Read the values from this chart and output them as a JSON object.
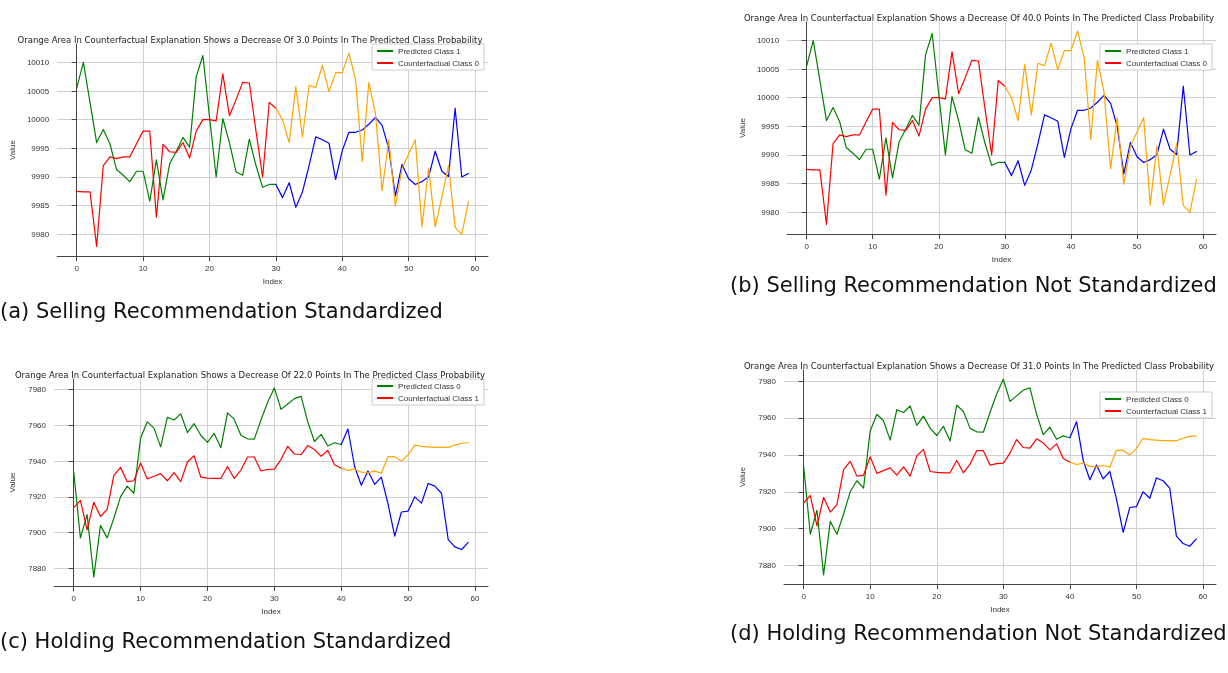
{
  "chart_data": [
    {
      "type": "line",
      "title": "Orange Area In Counterfactual Explanation Shows a Decrease Of 3.0 Points In The Predicted Class Probability",
      "xlabel": "Index",
      "ylabel": "Value",
      "xlim": [
        -2.95,
        61.95
      ],
      "xticks": [
        0,
        10,
        20,
        30,
        40,
        50,
        60
      ],
      "ylim": [
        9976.2,
        10013.2
      ],
      "yticks": [
        9980,
        9985,
        9990,
        9995,
        10000,
        10005,
        10010
      ],
      "grid": true,
      "legend": "top right",
      "annotations": [
        "(a) Selling Recommendation Standardized"
      ],
      "series": [
        {
          "name": "Predicted Class 1",
          "color": "#008000",
          "x": [
            0,
            1,
            2,
            3,
            4,
            5,
            6,
            7,
            8,
            9,
            10,
            11,
            12,
            13,
            14,
            15,
            16,
            17,
            18,
            19,
            20,
            21,
            22,
            23,
            24,
            25,
            26,
            27,
            28,
            29,
            30
          ],
          "values": [
            10005.5,
            10010,
            10003,
            9996,
            9998.3,
            9995.8,
            9991.3,
            9990.3,
            9989.2,
            9991,
            9991,
            9985.8,
            9993,
            9986,
            9992.3,
            9994.5,
            9996.9,
            9995.2,
            10007.5,
            10011.2,
            10000.5,
            9990,
            10000.2,
            9996,
            9990.9,
            9990.3,
            9996.6,
            9992,
            9988.2,
            9988.7,
            9988.7
          ]
        },
        {
          "name": "Counterfactual Class 0",
          "color": "#ff0000",
          "x": [
            0,
            1,
            2,
            3,
            4,
            5,
            6,
            7,
            8,
            9,
            10,
            11,
            12,
            13,
            14,
            15,
            16,
            17,
            18,
            19,
            20,
            21,
            22,
            23,
            24,
            25,
            26,
            27,
            28,
            29,
            30
          ],
          "values": [
            9987.5,
            9987.4,
            9987.4,
            9977.9,
            9992,
            9993.5,
            9993.2,
            9993.5,
            9993.5,
            9995.8,
            9998,
            9998,
            9983,
            9995.7,
            9994.4,
            9994.3,
            9996,
            9993.3,
            9998,
            10000,
            10000,
            9999.8,
            10008,
            10000.7,
            10003.5,
            10006.5,
            10006.4,
            9998,
            9990,
            10003,
            10002
          ]
        },
        {
          "color": "#0000ff",
          "x": [
            30,
            31,
            32,
            33,
            34,
            35,
            36,
            37,
            38,
            39,
            40,
            41,
            42,
            43,
            44,
            45,
            46,
            47,
            48,
            49,
            50,
            51,
            52,
            53,
            54,
            55,
            56,
            57,
            58,
            59
          ],
          "values": [
            9988.7,
            9986.4,
            9989,
            9984.7,
            9987.4,
            9992,
            9997,
            9996.5,
            9995.9,
            9989.6,
            9994.6,
            9997.8,
            9997.8,
            9998.2,
            9999.2,
            10000.4,
            9999,
            9995,
            9986.7,
            9992.2,
            9989.7,
            9988.7,
            9989.2,
            9990,
            9994.5,
            9991,
            9990.1,
            10002,
            9990,
            9990.6
          ]
        },
        {
          "color": "#ffa500",
          "x": [
            30,
            31,
            32,
            33,
            34,
            35,
            36,
            37,
            38,
            39,
            40,
            41,
            42,
            43,
            44,
            45,
            46,
            47,
            48,
            49,
            50,
            51,
            52,
            53,
            54,
            55,
            56,
            57,
            58,
            59
          ],
          "values": [
            10002,
            10000,
            9996,
            10005.8,
            9997,
            10006,
            10005.6,
            10009.5,
            10004.9,
            10008.2,
            10008.2,
            10011.6,
            10007,
            9992.7,
            10006.5,
            10001,
            9987.6,
            9996.5,
            9984.9,
            9991.5,
            9994,
            9996.5,
            9981.3,
            9991.5,
            9981.3,
            9986.5,
            9992,
            9981.2,
            9980,
            9985.7
          ]
        }
      ]
    },
    {
      "type": "line",
      "title": "Orange Area In Counterfactual Explanation Shows a Decrease Of 40.0 Points In The Predicted Class Probability",
      "xlabel": "Index",
      "ylabel": "Value",
      "xlim": [
        -2.95,
        61.95
      ],
      "xticks": [
        0,
        10,
        20,
        30,
        40,
        50,
        60
      ],
      "ylim": [
        9976.2,
        10013.2
      ],
      "yticks": [
        9980,
        9985,
        9990,
        9995,
        10000,
        10005,
        10010
      ],
      "grid": true,
      "legend": "top right",
      "annotations": [
        "(b) Selling Recommendation Not Standardized"
      ],
      "series": [
        {
          "name": "Predicted Class 1",
          "color": "#008000",
          "x": [
            0,
            1,
            2,
            3,
            4,
            5,
            6,
            7,
            8,
            9,
            10,
            11,
            12,
            13,
            14,
            15,
            16,
            17,
            18,
            19,
            20,
            21,
            22,
            23,
            24,
            25,
            26,
            27,
            28,
            29,
            30
          ],
          "values": [
            10005.5,
            10010,
            10003,
            9996,
            9998.3,
            9995.8,
            9991.3,
            9990.3,
            9989.2,
            9991,
            9991,
            9985.8,
            9993,
            9986,
            9992.3,
            9994.5,
            9996.9,
            9995.2,
            10007.5,
            10011.2,
            10000.5,
            9990,
            10000.2,
            9996,
            9990.9,
            9990.3,
            9996.6,
            9992,
            9988.2,
            9988.7,
            9988.7
          ]
        },
        {
          "name": "Counterfactual Class 0",
          "color": "#ff0000",
          "x": [
            0,
            1,
            2,
            3,
            4,
            5,
            6,
            7,
            8,
            9,
            10,
            11,
            12,
            13,
            14,
            15,
            16,
            17,
            18,
            19,
            20,
            21,
            22,
            23,
            24,
            25,
            26,
            27,
            28,
            29,
            30
          ],
          "values": [
            9987.5,
            9987.4,
            9987.4,
            9977.9,
            9992,
            9993.5,
            9993.2,
            9993.5,
            9993.5,
            9995.8,
            9998,
            9998,
            9983,
            9995.7,
            9994.4,
            9994.3,
            9996,
            9993.3,
            9998,
            10000,
            10000,
            9999.8,
            10008,
            10000.7,
            10003.5,
            10006.5,
            10006.4,
            9998,
            9990,
            10003,
            10002
          ]
        },
        {
          "color": "#0000ff",
          "x": [
            30,
            31,
            32,
            33,
            34,
            35,
            36,
            37,
            38,
            39,
            40,
            41,
            42,
            43,
            44,
            45,
            46,
            47,
            48,
            49,
            50,
            51,
            52,
            53,
            54,
            55,
            56,
            57,
            58,
            59
          ],
          "values": [
            9988.7,
            9986.4,
            9989,
            9984.7,
            9987.4,
            9992,
            9997,
            9996.5,
            9995.9,
            9989.6,
            9994.6,
            9997.8,
            9997.8,
            9998.2,
            9999.2,
            10000.4,
            9999,
            9995,
            9986.7,
            9992.2,
            9989.7,
            9988.7,
            9989.2,
            9990,
            9994.5,
            9991,
            9990.1,
            10002,
            9990,
            9990.6
          ]
        },
        {
          "color": "#ffa500",
          "x": [
            30,
            31,
            32,
            33,
            34,
            35,
            36,
            37,
            38,
            39,
            40,
            41,
            42,
            43,
            44,
            45,
            46,
            47,
            48,
            49,
            50,
            51,
            52,
            53,
            54,
            55,
            56,
            57,
            58,
            59
          ],
          "values": [
            10002,
            10000,
            9996,
            10005.8,
            9997,
            10006,
            10005.6,
            10009.5,
            10004.9,
            10008.2,
            10008.2,
            10011.6,
            10007,
            9992.7,
            10006.5,
            10001,
            9987.6,
            9996.5,
            9984.9,
            9991.5,
            9994,
            9996.5,
            9981.3,
            9991.5,
            9981.3,
            9986.5,
            9992,
            9981.2,
            9980,
            9985.7
          ]
        }
      ]
    },
    {
      "type": "line",
      "title": "Orange Area In Counterfactual Explanation Shows a Decrease Of 22.0 Points In The Predicted Class Probability",
      "xlabel": "Index",
      "ylabel": "Value",
      "xlim": [
        -2.95,
        61.95
      ],
      "xticks": [
        0,
        10,
        20,
        30,
        40,
        50,
        60
      ],
      "ylim": [
        7870,
        7986
      ],
      "yticks": [
        7880,
        7900,
        7920,
        7940,
        7960,
        7980
      ],
      "grid": true,
      "legend": "top right",
      "annotations": [
        "(c) Holding Recommendation Standardized"
      ],
      "series": [
        {
          "name": "Predicted Class 0",
          "color": "#008000",
          "x": [
            0,
            1,
            2,
            3,
            4,
            5,
            6,
            7,
            8,
            9,
            10,
            11,
            12,
            13,
            14,
            15,
            16,
            17,
            18,
            19,
            20,
            21,
            22,
            23,
            24,
            25,
            26,
            27,
            28,
            29,
            30,
            31,
            32,
            33,
            34,
            35,
            36,
            37,
            38,
            39,
            40
          ],
          "values": [
            7934,
            7897,
            7910,
            7875,
            7904,
            7897,
            7908,
            7920,
            7926,
            7922,
            7953,
            7962,
            7958.5,
            7948,
            7964.5,
            7963,
            7966.5,
            7956,
            7961,
            7954.5,
            7950.5,
            7955.5,
            7947.5,
            7967,
            7963.5,
            7954.5,
            7952.5,
            7952.3,
            7963,
            7973,
            7981,
            7969,
            7972,
            7975,
            7976.3,
            7962,
            7951,
            7955,
            7948.5,
            7950.3,
            7949.3
          ]
        },
        {
          "name": "Counterfactual Class 1",
          "color": "#ff0000",
          "x": [
            0,
            1,
            2,
            3,
            4,
            5,
            6,
            7,
            8,
            9,
            10,
            11,
            12,
            13,
            14,
            15,
            16,
            17,
            18,
            19,
            20,
            21,
            22,
            23,
            24,
            25,
            26,
            27,
            28,
            29,
            30,
            31,
            32,
            33,
            34,
            35,
            36,
            37,
            38,
            39,
            40
          ],
          "values": [
            7914,
            7918,
            7901.5,
            7917,
            7909,
            7913,
            7932,
            7936.5,
            7928.5,
            7929,
            7939,
            7930,
            7931.5,
            7933,
            7929,
            7933.5,
            7928.5,
            7939.5,
            7943,
            7931,
            7930.5,
            7930.3,
            7930.3,
            7937,
            7930.3,
            7935,
            7942.3,
            7942.3,
            7934.5,
            7935.3,
            7935.5,
            7941,
            7948.3,
            7944,
            7943.7,
            7948.7,
            7946.5,
            7942.7,
            7946,
            7938,
            7936
          ]
        },
        {
          "color": "#0000ff",
          "x": [
            40,
            41,
            42,
            43,
            44,
            45,
            46,
            47,
            48,
            49,
            50,
            51,
            52,
            53,
            54,
            55,
            56,
            57,
            58,
            59
          ],
          "values": [
            7949.3,
            7958,
            7937,
            7926.5,
            7934.5,
            7927,
            7931,
            7916,
            7898,
            7911.5,
            7912,
            7920,
            7916.5,
            7927.5,
            7926,
            7922,
            7896,
            7892,
            7890.5,
            7894.5
          ]
        },
        {
          "color": "#ffa500",
          "x": [
            40,
            41,
            42,
            43,
            44,
            45,
            46,
            47,
            48,
            49,
            50,
            51,
            52,
            53,
            54,
            55,
            56,
            57,
            58,
            59
          ],
          "values": [
            7936,
            7934.8,
            7935.5,
            7933.8,
            7933.5,
            7934.4,
            7933.3,
            7942.5,
            7942.5,
            7940,
            7943.5,
            7949,
            7948.3,
            7948,
            7947.7,
            7947.7,
            7947.7,
            7949,
            7950,
            7950.3
          ]
        }
      ]
    },
    {
      "type": "line",
      "title": "Orange Area In Counterfactual Explanation Shows a Decrease Of 31.0 Points In The Predicted Class Probability",
      "xlabel": "Index",
      "ylabel": "Value",
      "xlim": [
        -2.95,
        61.95
      ],
      "xticks": [
        0,
        10,
        20,
        30,
        40,
        50,
        60
      ],
      "ylim": [
        7870,
        7986
      ],
      "yticks": [
        7880,
        7900,
        7920,
        7940,
        7960,
        7980
      ],
      "grid": true,
      "legend": "top right",
      "annotations": [
        "(d) Holding Recommendation Not Standardized"
      ],
      "series": [
        {
          "name": "Predicted Class 0",
          "color": "#008000",
          "x": [
            0,
            1,
            2,
            3,
            4,
            5,
            6,
            7,
            8,
            9,
            10,
            11,
            12,
            13,
            14,
            15,
            16,
            17,
            18,
            19,
            20,
            21,
            22,
            23,
            24,
            25,
            26,
            27,
            28,
            29,
            30,
            31,
            32,
            33,
            34,
            35,
            36,
            37,
            38,
            39,
            40
          ],
          "values": [
            7934,
            7897,
            7910,
            7875,
            7904,
            7897,
            7908,
            7920,
            7926,
            7922,
            7953,
            7962,
            7958.5,
            7948,
            7964.5,
            7963,
            7966.5,
            7956,
            7961,
            7954.5,
            7950.5,
            7955.5,
            7947.5,
            7967,
            7963.5,
            7954.5,
            7952.5,
            7952.3,
            7963,
            7973,
            7981,
            7969,
            7972,
            7975,
            7976.3,
            7962,
            7951,
            7955,
            7948.5,
            7950.3,
            7949.3
          ]
        },
        {
          "name": "Counterfactual Class 1",
          "color": "#ff0000",
          "x": [
            0,
            1,
            2,
            3,
            4,
            5,
            6,
            7,
            8,
            9,
            10,
            11,
            12,
            13,
            14,
            15,
            16,
            17,
            18,
            19,
            20,
            21,
            22,
            23,
            24,
            25,
            26,
            27,
            28,
            29,
            30,
            31,
            32,
            33,
            34,
            35,
            36,
            37,
            38,
            39,
            40
          ],
          "values": [
            7914,
            7918,
            7901.5,
            7917,
            7909,
            7913,
            7932,
            7936.5,
            7928.5,
            7929,
            7939,
            7930,
            7931.5,
            7933,
            7929,
            7933.5,
            7928.5,
            7939.5,
            7943,
            7931,
            7930.5,
            7930.3,
            7930.3,
            7937,
            7930.3,
            7935,
            7942.3,
            7942.3,
            7934.5,
            7935.3,
            7935.5,
            7941,
            7948.3,
            7944,
            7943.7,
            7948.7,
            7946.5,
            7942.7,
            7946,
            7938,
            7936
          ]
        },
        {
          "color": "#0000ff",
          "x": [
            40,
            41,
            42,
            43,
            44,
            45,
            46,
            47,
            48,
            49,
            50,
            51,
            52,
            53,
            54,
            55,
            56,
            57,
            58,
            59
          ],
          "values": [
            7949.3,
            7958,
            7937,
            7926.5,
            7934.5,
            7927,
            7931,
            7916,
            7898,
            7911.5,
            7912,
            7920,
            7916.5,
            7927.5,
            7926,
            7922,
            7896,
            7892,
            7890.5,
            7894.5
          ]
        },
        {
          "color": "#ffa500",
          "x": [
            40,
            41,
            42,
            43,
            44,
            45,
            46,
            47,
            48,
            49,
            50,
            51,
            52,
            53,
            54,
            55,
            56,
            57,
            58,
            59
          ],
          "values": [
            7936,
            7934.8,
            7935.5,
            7933.8,
            7933.5,
            7934.4,
            7933.3,
            7942.5,
            7942.5,
            7940,
            7943.5,
            7949,
            7948.3,
            7948,
            7947.7,
            7947.7,
            7947.7,
            7949,
            7950,
            7950.3
          ]
        }
      ]
    }
  ]
}
